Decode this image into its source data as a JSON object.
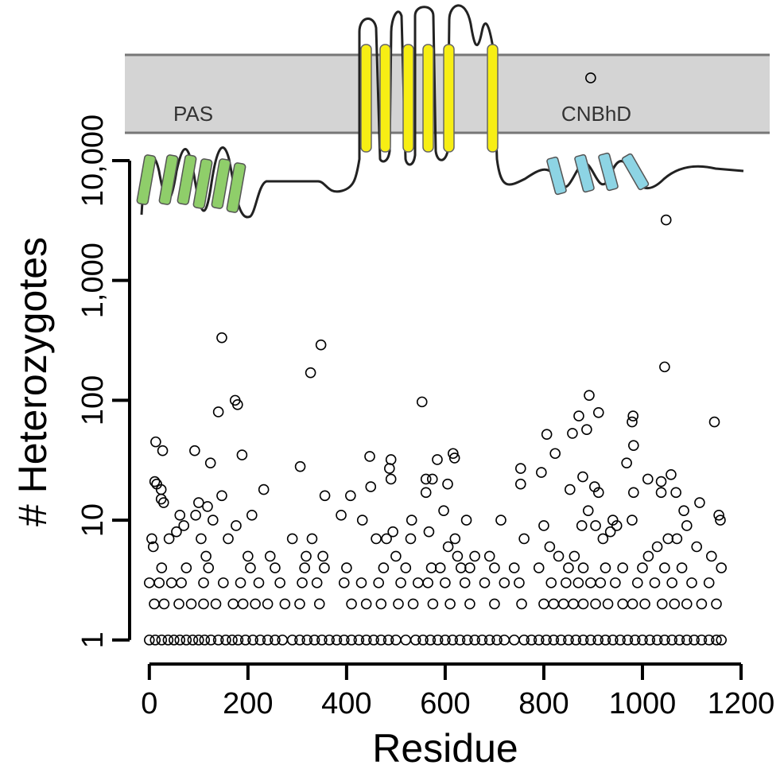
{
  "chart_data": {
    "type": "scatter",
    "xlabel": "Residue",
    "ylabel": "# Heterozygotes",
    "annotations": [
      "PAS",
      "CNBhD"
    ],
    "yscale": "log",
    "xlim": [
      -40,
      1200
    ],
    "ylim": [
      0.63,
      219000
    ],
    "xticks": [
      0,
      200,
      400,
      600,
      800,
      1000,
      1200
    ],
    "yticks": [
      1,
      10,
      100,
      {
        "value": 1000,
        "label": "1,000"
      },
      {
        "value": 10000,
        "label": "10,000"
      }
    ],
    "series": [
      {
        "color": "#000000",
        "x": [
          147,
          348,
          327,
          174,
          179,
          140,
          553,
          1048,
          1045,
          892,
          895,
          13,
          92,
          27,
          188,
          306,
          124,
          232,
          447,
          490,
          487,
          490,
          584,
          616,
          619,
          871,
          887,
          858,
          806,
          911,
          981,
          979,
          982,
          968,
          1146,
          823,
          795,
          753,
          753,
          147,
          356,
          408,
          449,
          561,
          574,
          605,
          561,
          853,
          879,
          903,
          911,
          982,
          1011,
          1038,
          1058,
          1038,
          1068,
          11,
          15,
          24,
          24,
          29,
          176,
          100,
          94,
          118,
          129,
          208,
          389,
          432,
          481,
          494,
          532,
          643,
          713,
          800,
          890,
          940,
          979,
          1084,
          1116,
          1155,
          1158,
          5,
          8,
          40,
          55,
          70,
          62,
          105,
          115,
          160,
          200,
          245,
          290,
          318,
          330,
          352,
          460,
          500,
          530,
          567,
          597,
          606,
          620,
          625,
          660,
          690,
          760,
          812,
          830,
          862,
          877,
          905,
          920,
          935,
          948,
          1012,
          1030,
          1052,
          1070,
          1090,
          1110,
          1140,
          25,
          75,
          120,
          205,
          255,
          315,
          355,
          400,
          475,
          520,
          572,
          590,
          632,
          650,
          700,
          740,
          790,
          850,
          880,
          925,
          960,
          1000,
          1045,
          1080,
          1160,
          0,
          20,
          45,
          65,
          110,
          150,
          185,
          222,
          265,
          310,
          340,
          395,
          430,
          465,
          510,
          545,
          565,
          600,
          640,
          680,
          720,
          750,
          815,
          845,
          870,
          895,
          915,
          945,
          990,
          1025,
          1060,
          1100,
          1135,
          10,
          30,
          60,
          85,
          110,
          135,
          170,
          190,
          215,
          240,
          275,
          305,
          345,
          410,
          440,
          470,
          505,
          535,
          575,
          610,
          650,
          700,
          755,
          800,
          820,
          840,
          860,
          880,
          905,
          930,
          960,
          980,
          1005,
          1040,
          1065,
          1090,
          1120,
          1150,
          0,
          12,
          25,
          38,
          50,
          62,
          75,
          88,
          100,
          112,
          125,
          140,
          155,
          168,
          180,
          195,
          210,
          225,
          240,
          255,
          270,
          290,
          305,
          320,
          335,
          350,
          365,
          380,
          395,
          410,
          425,
          440,
          455,
          470,
          485,
          500,
          520,
          540,
          555,
          570,
          585,
          600,
          615,
          630,
          645,
          660,
          675,
          690,
          705,
          720,
          740,
          760,
          775,
          790,
          805,
          820,
          835,
          850,
          865,
          880,
          895,
          910,
          925,
          940,
          955,
          970,
          985,
          1000,
          1015,
          1030,
          1045,
          1060,
          1075,
          1090,
          1105,
          1120,
          1135,
          1150,
          1160
        ],
        "values": [
          333,
          290,
          170,
          100,
          92,
          80,
          97,
          3200,
          190,
          110,
          49000,
          45,
          38,
          38,
          35,
          28,
          30,
          18,
          34,
          32,
          27,
          22,
          32,
          36,
          33,
          74,
          57,
          53,
          52,
          79,
          74,
          66,
          42,
          30,
          66,
          36,
          25,
          27,
          20,
          16,
          16,
          16,
          19,
          22,
          22,
          20,
          17,
          18,
          23,
          19,
          17,
          17,
          22,
          21,
          24,
          17,
          17,
          21,
          20,
          18,
          15,
          14,
          9,
          14,
          11,
          13,
          10,
          11,
          11,
          10,
          7,
          8,
          10,
          10,
          10,
          9,
          12,
          10,
          10,
          12,
          14,
          11,
          10,
          7,
          6,
          7,
          8,
          9,
          11,
          7,
          5,
          7,
          5,
          5,
          7,
          5,
          7,
          5,
          7,
          5,
          7,
          8,
          12,
          6,
          7,
          5,
          5,
          5,
          7,
          6,
          5,
          5,
          9,
          9,
          7,
          8,
          9,
          5,
          6,
          7,
          7,
          9,
          6,
          5,
          4,
          4,
          4,
          4,
          4,
          4,
          4,
          4,
          4,
          4,
          4,
          4,
          4,
          4,
          4,
          4,
          4,
          4,
          4,
          4,
          4,
          4,
          4,
          4,
          4,
          3,
          3,
          3,
          3,
          3,
          3,
          3,
          3,
          3,
          3,
          3,
          3,
          3,
          3,
          3,
          3,
          3,
          3,
          3,
          3,
          3,
          3,
          3,
          3,
          3,
          3,
          3,
          3,
          3,
          3,
          3,
          3,
          3,
          2,
          2,
          2,
          2,
          2,
          2,
          2,
          2,
          2,
          2,
          2,
          2,
          2,
          2,
          2,
          2,
          2,
          2,
          2,
          2,
          2,
          2,
          2,
          2,
          2,
          2,
          2,
          2,
          2,
          2,
          2,
          2,
          2,
          2,
          2,
          2,
          2,
          2,
          1,
          1,
          1,
          1,
          1,
          1,
          1,
          1,
          1,
          1,
          1,
          1,
          1,
          1,
          1,
          1,
          1,
          1,
          1,
          1,
          1,
          1,
          1,
          1,
          1,
          1,
          1,
          1,
          1,
          1,
          1,
          1,
          1,
          1,
          1,
          1,
          1,
          1,
          1,
          1,
          1,
          1,
          1,
          1,
          1,
          1,
          1,
          1,
          1,
          1,
          1,
          1,
          1,
          1,
          1,
          1,
          1,
          1,
          1,
          1,
          1,
          1,
          1,
          1,
          1,
          1,
          1,
          1,
          1,
          1,
          1,
          1,
          1,
          1,
          1,
          1,
          1,
          1,
          1
        ]
      }
    ]
  }
}
